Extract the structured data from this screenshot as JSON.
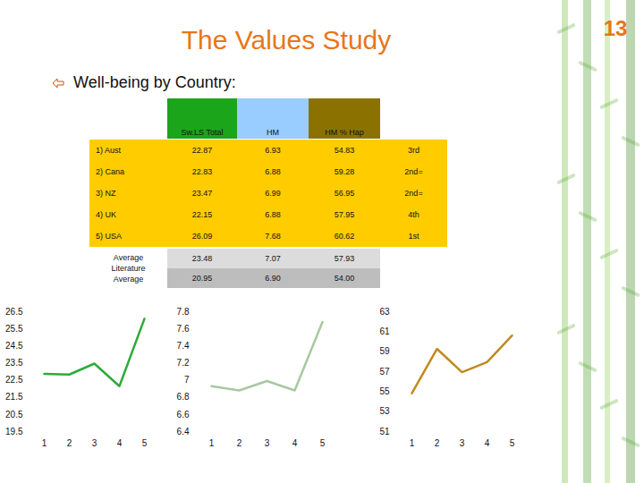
{
  "slide": {
    "title": "The Values Study",
    "page_number": "13",
    "subtitle": "Well-being by Country:"
  },
  "table": {
    "header": [
      "Sw.LS Total",
      "HM",
      "HM % Hap"
    ],
    "rows": [
      [
        "1) Aust",
        "22.87",
        "6.93",
        "54.83",
        "3rd"
      ],
      [
        "2) Cana",
        "22.83",
        "6.88",
        "59.28",
        "2nd="
      ],
      [
        "3) NZ",
        "23.47",
        "6.99",
        "56.95",
        "2nd="
      ],
      [
        "4) UK",
        "22.15",
        "6.88",
        "57.95",
        "4th"
      ],
      [
        "5) USA",
        "26.09",
        "7.68",
        "60.62",
        "1st"
      ]
    ],
    "averages": [
      [
        "Average",
        "23.48",
        "7.07",
        "57.93"
      ],
      [
        "Literature Average",
        "20.95",
        "6.90",
        "54.00"
      ]
    ]
  },
  "chart_data": [
    {
      "type": "line",
      "categories": [
        "1",
        "2",
        "3",
        "4",
        "5"
      ],
      "values": [
        22.87,
        22.83,
        23.47,
        22.15,
        26.09
      ],
      "color": "#2eaa3a",
      "ylim": [
        19.5,
        26.5
      ],
      "yticks": [
        19.5,
        20.5,
        21.5,
        22.5,
        23.5,
        24.5,
        25.5,
        26.5
      ],
      "grid": false
    },
    {
      "type": "line",
      "categories": [
        "1",
        "2",
        "3",
        "4",
        "5"
      ],
      "values": [
        6.93,
        6.88,
        6.99,
        6.88,
        7.68
      ],
      "color": "#a8c8a0",
      "ylim": [
        6.4,
        7.8
      ],
      "yticks": [
        6.4,
        6.6,
        6.8,
        7,
        7.2,
        7.4,
        7.6,
        7.8
      ],
      "grid": false
    },
    {
      "type": "line",
      "categories": [
        "1",
        "2",
        "3",
        "4",
        "5"
      ],
      "values": [
        54.83,
        59.28,
        56.95,
        57.95,
        60.62
      ],
      "color": "#c08a1e",
      "ylim": [
        51,
        63
      ],
      "yticks": [
        51,
        53,
        55,
        57,
        59,
        61,
        63
      ],
      "grid": false
    }
  ]
}
